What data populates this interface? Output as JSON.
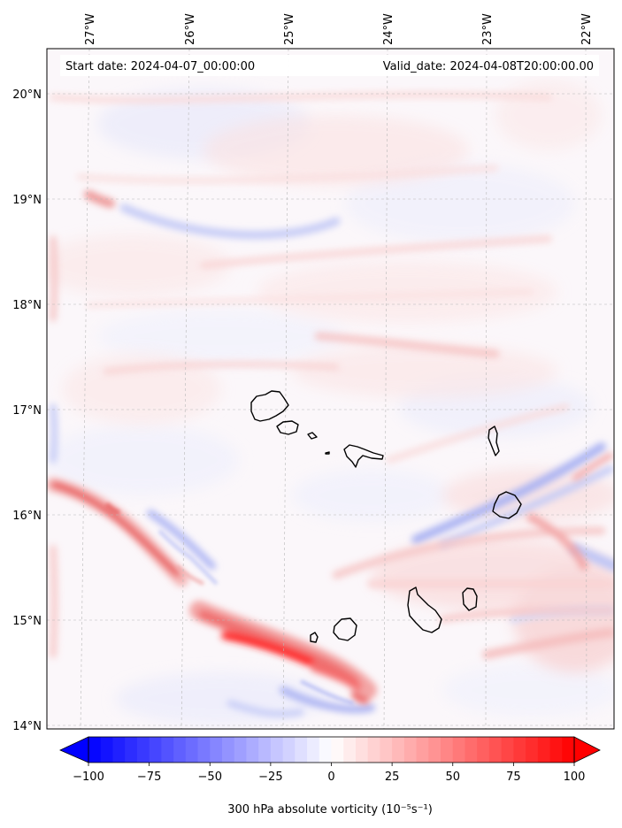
{
  "header": {
    "start_date": "Start date: 2024-04-07_00:00:00",
    "valid_date": "Valid_date: 2024-04-08T20:00:00.00"
  },
  "map": {
    "lon_labels": [
      "27°W",
      "26°W",
      "25°W",
      "24°W",
      "23°W",
      "22°W"
    ],
    "lat_labels": [
      "20°N",
      "19°N",
      "18°N",
      "17°N",
      "16°N",
      "15°N",
      "14°N"
    ],
    "lon_values": [
      -27,
      -26,
      -25,
      -24,
      -23,
      -22
    ],
    "lat_values": [
      20,
      19,
      18,
      17,
      16,
      15,
      14
    ],
    "islands": [
      "Santo Antão",
      "São Vicente",
      "Santa Luzia",
      "Branco",
      "São Nicolau",
      "Sal",
      "Boa Vista",
      "Fogo",
      "Brava",
      "Santiago",
      "Maio"
    ]
  },
  "colorbar": {
    "ticks": [
      "−100",
      "−75",
      "−50",
      "−25",
      "0",
      "25",
      "50",
      "75",
      "100"
    ],
    "tick_values": [
      -100,
      -75,
      -50,
      -25,
      0,
      25,
      50,
      75,
      100
    ],
    "label": "300 hPa absolute vorticity (10⁻⁵s⁻¹)",
    "color_neg": "#0000ff",
    "color_mid": "#ffffff",
    "color_pos": "#ff0000"
  }
}
